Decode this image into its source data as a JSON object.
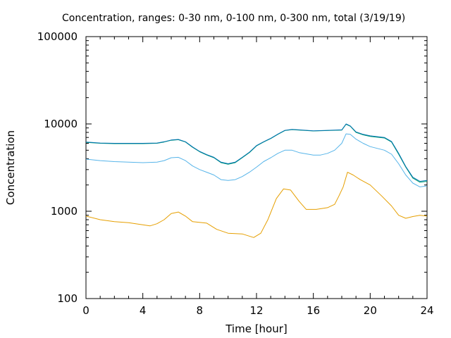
{
  "chart_data": {
    "type": "line",
    "title": "Concentration, ranges: 0-30 nm, 0-100 nm, 0-300 nm, total (3/19/19)",
    "xlabel": "Time [hour]",
    "ylabel": "Concentration",
    "xlim": [
      0,
      24
    ],
    "ylim": [
      100,
      100000
    ],
    "yscale": "log",
    "grid": false,
    "legend": "none",
    "x_ticks": [
      0,
      4,
      8,
      12,
      16,
      20,
      24
    ],
    "x_tick_labels": [
      "0",
      "4",
      "8",
      "12",
      "16",
      "20",
      "24"
    ],
    "y_ticks": [
      100,
      1000,
      10000,
      100000
    ],
    "y_tick_labels": [
      "100",
      "1000",
      "10000",
      "100000"
    ],
    "series": [
      {
        "color": "#e69f00",
        "points": [
          [
            0,
            880
          ],
          [
            1,
            800
          ],
          [
            2,
            760
          ],
          [
            3,
            740
          ],
          [
            4,
            700
          ],
          [
            4.5,
            680
          ],
          [
            5,
            720
          ],
          [
            5.5,
            800
          ],
          [
            6,
            940
          ],
          [
            6.5,
            980
          ],
          [
            7,
            880
          ],
          [
            7.5,
            760
          ],
          [
            8.5,
            730
          ],
          [
            9.2,
            620
          ],
          [
            10,
            560
          ],
          [
            11,
            550
          ],
          [
            11.8,
            500
          ],
          [
            12.3,
            560
          ],
          [
            12.8,
            800
          ],
          [
            13.4,
            1400
          ],
          [
            13.9,
            1800
          ],
          [
            14.4,
            1750
          ],
          [
            15,
            1300
          ],
          [
            15.5,
            1050
          ],
          [
            16.2,
            1050
          ],
          [
            17,
            1100
          ],
          [
            17.5,
            1200
          ],
          [
            17.8,
            1500
          ],
          [
            18.1,
            1900
          ],
          [
            18.4,
            2800
          ],
          [
            18.8,
            2600
          ],
          [
            19.3,
            2300
          ],
          [
            20,
            2000
          ],
          [
            20.8,
            1500
          ],
          [
            21.5,
            1150
          ],
          [
            22,
            900
          ],
          [
            22.5,
            830
          ],
          [
            23,
            870
          ],
          [
            23.5,
            900
          ],
          [
            24,
            880
          ]
        ]
      },
      {
        "color": "#56b4e9",
        "points": [
          [
            0,
            3950
          ],
          [
            1,
            3800
          ],
          [
            2,
            3700
          ],
          [
            3,
            3650
          ],
          [
            4,
            3600
          ],
          [
            5,
            3650
          ],
          [
            5.5,
            3800
          ],
          [
            6,
            4100
          ],
          [
            6.5,
            4150
          ],
          [
            7,
            3800
          ],
          [
            7.5,
            3300
          ],
          [
            8,
            3000
          ],
          [
            8.5,
            2800
          ],
          [
            9,
            2600
          ],
          [
            9.5,
            2300
          ],
          [
            10,
            2250
          ],
          [
            10.5,
            2300
          ],
          [
            11,
            2500
          ],
          [
            11.5,
            2800
          ],
          [
            12,
            3200
          ],
          [
            12.5,
            3700
          ],
          [
            13,
            4100
          ],
          [
            13.5,
            4600
          ],
          [
            14,
            5000
          ],
          [
            14.5,
            5000
          ],
          [
            15,
            4700
          ],
          [
            16,
            4400
          ],
          [
            16.5,
            4400
          ],
          [
            17,
            4600
          ],
          [
            17.5,
            5000
          ],
          [
            18,
            6000
          ],
          [
            18.3,
            7700
          ],
          [
            18.6,
            7600
          ],
          [
            19,
            6700
          ],
          [
            19.5,
            6000
          ],
          [
            20,
            5500
          ],
          [
            21,
            5000
          ],
          [
            21.5,
            4500
          ],
          [
            22,
            3500
          ],
          [
            22.5,
            2600
          ],
          [
            23,
            2100
          ],
          [
            23.5,
            1900
          ],
          [
            24,
            1950
          ]
        ]
      },
      {
        "color": "#009e73",
        "points": [
          [
            0,
            6150
          ],
          [
            1,
            6000
          ],
          [
            2,
            5950
          ],
          [
            3,
            5950
          ],
          [
            4,
            5950
          ],
          [
            5,
            6000
          ],
          [
            5.5,
            6200
          ],
          [
            6,
            6500
          ],
          [
            6.5,
            6600
          ],
          [
            7,
            6200
          ],
          [
            7.5,
            5400
          ],
          [
            8,
            4800
          ],
          [
            8.5,
            4400
          ],
          [
            9,
            4100
          ],
          [
            9.5,
            3600
          ],
          [
            10,
            3450
          ],
          [
            10.5,
            3600
          ],
          [
            11,
            4100
          ],
          [
            11.5,
            4700
          ],
          [
            12,
            5600
          ],
          [
            12.5,
            6200
          ],
          [
            13,
            6800
          ],
          [
            13.5,
            7600
          ],
          [
            14,
            8400
          ],
          [
            14.5,
            8600
          ],
          [
            15,
            8500
          ],
          [
            16,
            8300
          ],
          [
            17,
            8400
          ],
          [
            18,
            8500
          ],
          [
            18.3,
            9900
          ],
          [
            18.6,
            9400
          ],
          [
            19,
            8000
          ],
          [
            19.5,
            7500
          ],
          [
            20,
            7200
          ],
          [
            21,
            6900
          ],
          [
            21.5,
            6200
          ],
          [
            22,
            4500
          ],
          [
            22.5,
            3200
          ],
          [
            23,
            2400
          ],
          [
            23.5,
            2150
          ],
          [
            24,
            2200
          ]
        ]
      },
      {
        "color": "#0072b2",
        "points": [
          [
            0,
            6200
          ],
          [
            1,
            6050
          ],
          [
            2,
            6000
          ],
          [
            3,
            6000
          ],
          [
            4,
            6000
          ],
          [
            5,
            6050
          ],
          [
            5.5,
            6250
          ],
          [
            6,
            6550
          ],
          [
            6.5,
            6650
          ],
          [
            7,
            6250
          ],
          [
            7.5,
            5450
          ],
          [
            8,
            4850
          ],
          [
            8.5,
            4450
          ],
          [
            9,
            4150
          ],
          [
            9.5,
            3650
          ],
          [
            10,
            3500
          ],
          [
            10.5,
            3650
          ],
          [
            11,
            4150
          ],
          [
            11.5,
            4750
          ],
          [
            12,
            5650
          ],
          [
            12.5,
            6250
          ],
          [
            13,
            6850
          ],
          [
            13.5,
            7650
          ],
          [
            14,
            8450
          ],
          [
            14.5,
            8650
          ],
          [
            15,
            8550
          ],
          [
            16,
            8350
          ],
          [
            17,
            8450
          ],
          [
            18,
            8550
          ],
          [
            18.3,
            10000
          ],
          [
            18.6,
            9500
          ],
          [
            19,
            8100
          ],
          [
            19.5,
            7600
          ],
          [
            20,
            7300
          ],
          [
            21,
            7000
          ],
          [
            21.5,
            6300
          ],
          [
            22,
            4600
          ],
          [
            22.5,
            3250
          ],
          [
            23,
            2450
          ],
          [
            23.5,
            2200
          ],
          [
            24,
            2250
          ]
        ]
      }
    ]
  }
}
